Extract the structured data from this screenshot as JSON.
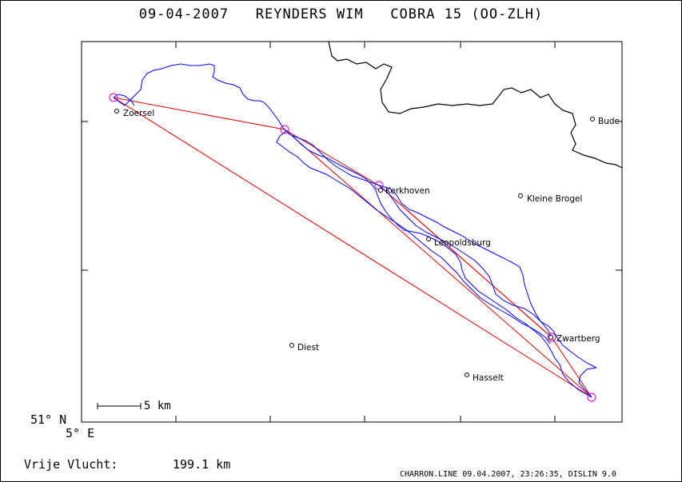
{
  "title": "09-04-2007   REYNDERS WIM   COBRA 15 (OO-ZLH)",
  "axes": {
    "lat_label": "51° N",
    "lon_label": "5° E"
  },
  "scale_bar": {
    "label": "5 km"
  },
  "places": [
    {
      "name": "Zoersel"
    },
    {
      "name": "Budel"
    },
    {
      "name": "Kerkhoven"
    },
    {
      "name": "Kleine Brogel"
    },
    {
      "name": "Leopoldsburg"
    },
    {
      "name": "Diest"
    },
    {
      "name": "Zwartberg"
    },
    {
      "name": "Hasselt"
    }
  ],
  "flight": {
    "label": "Vrije Vlucht:",
    "distance": "199.1 km"
  },
  "footer": "CHARRON.LINE 09.04.2007, 23:26:35, DISLIN 9.0",
  "colors": {
    "track": "#0000ff",
    "task_line": "#e00000",
    "turnpoint": "#d000d0",
    "border": "#000000"
  }
}
